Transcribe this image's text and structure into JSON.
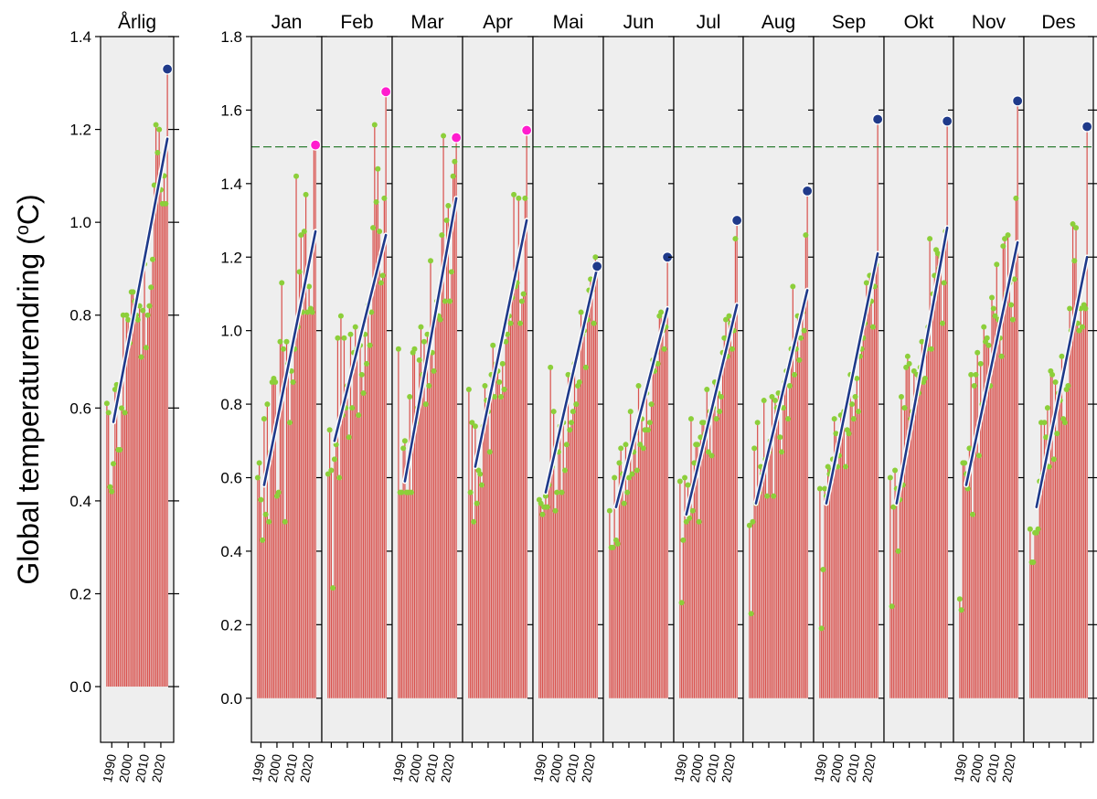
{
  "chart_data": {
    "type": "bar",
    "ylabel": "Global temperaturendring (°C)",
    "ylabel_parts": {
      "main": "Global temperaturendring (",
      "sup": "o",
      "unit": "C)"
    },
    "reference_line": {
      "value": 1.5,
      "color": "#2e7d32"
    },
    "colors": {
      "bar": "#d9534f",
      "point": "#8ccf3a",
      "trend": "#1f3a8a",
      "record_high": "#ff1dce",
      "record_latest": "#1f3a8a",
      "panel_bg": "#eeeeee"
    },
    "panels": [
      {
        "title": "Årlig",
        "ylim": [
          -0.12,
          1.4
        ],
        "yticks": [
          0.0,
          0.2,
          0.4,
          0.6,
          0.8,
          1.0,
          1.2,
          1.4
        ],
        "xticks": [
          "1990",
          "2000",
          "2010",
          "2020"
        ],
        "years": [
          1987,
          2024
        ],
        "values": [
          0.61,
          0.59,
          0.43,
          0.42,
          0.48,
          0.64,
          0.65,
          0.51,
          0.51,
          0.6,
          0.8,
          0.59,
          0.8,
          0.79,
          0.74,
          0.85,
          0.85,
          0.83,
          0.8,
          0.79,
          0.82,
          0.71,
          0.81,
          0.91,
          0.73,
          0.8,
          0.82,
          0.86,
          0.92,
          1.08,
          1.21,
          1.15,
          1.2,
          1.07,
          1.04,
          1.1,
          1.04,
          1.33
        ],
        "trend": [
          0.57,
          1.18
        ],
        "highlight": {
          "value": 1.33,
          "color": "record_latest"
        }
      },
      {
        "title": "Jan",
        "ylim": [
          -0.12,
          1.8
        ],
        "yticks": [
          0.0,
          0.2,
          0.4,
          0.6,
          0.8,
          1.0,
          1.2,
          1.4,
          1.6,
          1.8
        ],
        "xticks": [
          "1990",
          "2000",
          "2010",
          "2020"
        ],
        "years": [
          1988,
          2024
        ],
        "values": [
          0.6,
          0.64,
          0.54,
          0.43,
          0.76,
          0.5,
          0.8,
          0.48,
          0.67,
          0.86,
          0.87,
          0.86,
          0.55,
          0.56,
          0.97,
          1.13,
          0.95,
          0.48,
          0.97,
          0.91,
          0.75,
          0.89,
          0.86,
          0.95,
          1.42,
          1.01,
          1.16,
          1.26,
          1.05,
          1.27,
          1.37,
          1.05,
          1.12,
          1.06,
          1.05,
          1.5,
          1.5
        ],
        "trend": [
          0.58,
          1.27
        ],
        "highlight": {
          "value": 1.505,
          "color": "record_high"
        }
      },
      {
        "title": "Feb",
        "ylim": [
          -0.12,
          1.8
        ],
        "yticks": [
          0.0,
          0.2,
          0.4,
          0.6,
          0.8,
          1.0,
          1.2,
          1.4,
          1.6,
          1.8
        ],
        "xticks": [],
        "years": [
          1988,
          2024
        ],
        "values": [
          0.61,
          0.73,
          0.62,
          0.3,
          0.65,
          0.69,
          0.98,
          0.6,
          1.04,
          0.77,
          0.98,
          0.79,
          0.85,
          0.71,
          0.99,
          0.79,
          0.94,
          1.01,
          0.95,
          0.77,
          0.96,
          0.88,
          0.83,
          0.99,
          0.91,
          1.07,
          0.96,
          1.05,
          1.28,
          1.56,
          1.35,
          1.44,
          1.27,
          1.13,
          1.15,
          1.36,
          1.65
        ],
        "trend": [
          0.7,
          1.26
        ],
        "highlight": {
          "value": 1.65,
          "color": "record_high"
        }
      },
      {
        "title": "Mar",
        "ylim": [
          -0.12,
          1.8
        ],
        "yticks": [
          0.0,
          0.2,
          0.4,
          0.6,
          0.8,
          1.0,
          1.2,
          1.4,
          1.6,
          1.8
        ],
        "xticks": [
          "1990",
          "2000",
          "2010",
          "2020"
        ],
        "years": [
          1988,
          2024
        ],
        "values": [
          0.95,
          0.56,
          0.56,
          0.68,
          0.7,
          0.56,
          0.56,
          0.82,
          0.56,
          0.94,
          0.95,
          0.75,
          0.79,
          0.92,
          1.01,
          0.88,
          0.97,
          0.8,
          0.99,
          0.85,
          1.19,
          0.94,
          0.89,
          1.04,
          1.08,
          1.04,
          1.03,
          1.26,
          1.53,
          1.08,
          1.3,
          1.34,
          1.08,
          1.16,
          1.42,
          1.46,
          1.52
        ],
        "trend": [
          0.59,
          1.36
        ],
        "highlight": {
          "value": 1.525,
          "color": "record_high"
        }
      },
      {
        "title": "Apr",
        "ylim": [
          -0.12,
          1.8
        ],
        "yticks": [
          0.0,
          0.2,
          0.4,
          0.6,
          0.8,
          1.0,
          1.2,
          1.4,
          1.6,
          1.8
        ],
        "xticks": [],
        "years": [
          1988,
          2024
        ],
        "values": [
          0.84,
          0.56,
          0.75,
          0.48,
          0.74,
          0.53,
          0.62,
          0.61,
          0.58,
          0.74,
          0.85,
          0.81,
          0.78,
          0.67,
          0.88,
          0.96,
          0.82,
          0.91,
          0.89,
          0.86,
          0.82,
          0.91,
          0.84,
          0.97,
          0.99,
          1.04,
          1.02,
          1.09,
          1.37,
          1.12,
          1.13,
          1.36,
          1.02,
          1.08,
          1.1,
          1.36,
          1.54
        ],
        "trend": [
          0.63,
          1.3
        ],
        "highlight": {
          "value": 1.545,
          "color": "record_high"
        }
      },
      {
        "title": "Mai",
        "ylim": [
          -0.12,
          1.8
        ],
        "yticks": [
          0.0,
          0.2,
          0.4,
          0.6,
          0.8,
          1.0,
          1.2,
          1.4,
          1.6,
          1.8
        ],
        "xticks": [
          "1990",
          "2000",
          "2010",
          "2020"
        ],
        "years": [
          1988,
          2024
        ],
        "values": [
          0.54,
          0.53,
          0.5,
          0.52,
          0.55,
          0.52,
          0.58,
          0.9,
          0.63,
          0.78,
          0.51,
          0.56,
          0.67,
          0.74,
          0.56,
          0.75,
          0.62,
          0.69,
          0.88,
          0.73,
          0.75,
          0.78,
          0.91,
          0.8,
          0.85,
          0.86,
          1.05,
          0.99,
          1.0,
          0.9,
          1.03,
          1.11,
          1.14,
          1.11,
          1.02,
          1.2,
          1.17
        ],
        "trend": [
          0.56,
          1.17
        ],
        "highlight": {
          "value": 1.175,
          "color": "record_latest"
        }
      },
      {
        "title": "Jun",
        "ylim": [
          -0.12,
          1.8
        ],
        "yticks": [
          0.0,
          0.2,
          0.4,
          0.6,
          0.8,
          1.0,
          1.2,
          1.4,
          1.6,
          1.8
        ],
        "xticks": [],
        "years": [
          1988,
          2024
        ],
        "values": [
          0.51,
          0.41,
          0.41,
          0.6,
          0.43,
          0.42,
          0.64,
          0.68,
          0.61,
          0.53,
          0.69,
          0.56,
          0.6,
          0.78,
          0.61,
          0.67,
          0.72,
          0.62,
          0.85,
          0.69,
          0.76,
          0.68,
          0.73,
          0.83,
          0.73,
          0.75,
          0.8,
          0.92,
          0.89,
          0.94,
          0.91,
          1.04,
          1.05,
          1.0,
          0.95,
          1.01,
          1.2
        ],
        "trend": [
          0.52,
          1.06
        ],
        "highlight": {
          "value": 1.2,
          "color": "record_latest"
        }
      },
      {
        "title": "Jul",
        "ylim": [
          -0.12,
          1.8
        ],
        "yticks": [
          0.0,
          0.2,
          0.4,
          0.6,
          0.8,
          1.0,
          1.2,
          1.4,
          1.6,
          1.8
        ],
        "xticks": [
          "1990",
          "2000",
          "2010",
          "2020"
        ],
        "years": [
          1988,
          2024
        ],
        "values": [
          0.59,
          0.26,
          0.43,
          0.6,
          0.48,
          0.58,
          0.49,
          0.76,
          0.51,
          0.64,
          0.69,
          0.69,
          0.48,
          0.71,
          0.75,
          0.75,
          0.72,
          0.84,
          0.67,
          0.78,
          0.66,
          0.79,
          0.86,
          0.76,
          0.83,
          0.78,
          0.82,
          0.94,
          0.98,
          1.03,
          0.93,
          1.04,
          1.02,
          0.95,
          1.0,
          1.25,
          1.3
        ],
        "trend": [
          0.5,
          1.07
        ],
        "highlight": {
          "value": 1.3,
          "color": "record_latest"
        }
      },
      {
        "title": "Aug",
        "ylim": [
          -0.12,
          1.8
        ],
        "yticks": [
          0.0,
          0.2,
          0.4,
          0.6,
          0.8,
          1.0,
          1.2,
          1.4,
          1.6,
          1.8
        ],
        "xticks": [],
        "years": [
          1988,
          2024
        ],
        "values": [
          0.47,
          0.23,
          0.48,
          0.68,
          0.53,
          0.75,
          0.56,
          0.63,
          0.61,
          0.81,
          0.65,
          0.55,
          0.67,
          0.7,
          0.82,
          0.55,
          0.81,
          0.79,
          0.83,
          0.71,
          0.67,
          0.79,
          0.86,
          0.89,
          0.76,
          0.85,
          0.95,
          1.12,
          0.88,
          0.95,
          1.04,
          0.92,
          0.98,
          1.05,
          1.0,
          1.26,
          1.38
        ],
        "trend": [
          0.53,
          1.11
        ],
        "highlight": {
          "value": 1.38,
          "color": "record_latest"
        }
      },
      {
        "title": "Sep",
        "ylim": [
          -0.12,
          1.8
        ],
        "yticks": [
          0.0,
          0.2,
          0.4,
          0.6,
          0.8,
          1.0,
          1.2,
          1.4,
          1.6,
          1.8
        ],
        "xticks": [
          "1990",
          "2000",
          "2010",
          "2020"
        ],
        "years": [
          1988,
          2024
        ],
        "values": [
          0.57,
          0.19,
          0.35,
          0.57,
          0.55,
          0.63,
          0.61,
          0.62,
          0.65,
          0.76,
          0.72,
          0.63,
          0.66,
          0.77,
          0.77,
          0.78,
          0.63,
          0.73,
          0.72,
          0.88,
          0.8,
          0.76,
          0.82,
          0.87,
          0.78,
          0.93,
          0.95,
          0.98,
          1.02,
          1.13,
          1.07,
          1.15,
          1.08,
          1.01,
          1.12,
          1.18,
          1.575
        ],
        "trend": [
          0.53,
          1.21
        ],
        "highlight": {
          "value": 1.575,
          "color": "record_latest"
        }
      },
      {
        "title": "Okt",
        "ylim": [
          -0.12,
          1.8
        ],
        "yticks": [
          0.0,
          0.2,
          0.4,
          0.6,
          0.8,
          1.0,
          1.2,
          1.4,
          1.6,
          1.8
        ],
        "xticks": [],
        "years": [
          1988,
          2024
        ],
        "values": [
          0.6,
          0.25,
          0.52,
          0.62,
          0.57,
          0.4,
          0.54,
          0.82,
          0.58,
          0.79,
          0.9,
          0.93,
          0.91,
          0.76,
          0.78,
          0.89,
          0.81,
          0.88,
          0.83,
          0.9,
          0.97,
          0.86,
          0.87,
          0.95,
          1.01,
          1.25,
          0.95,
          1.1,
          1.15,
          1.22,
          1.21,
          1.17,
          1.2,
          1.02,
          1.13,
          1.27,
          1.57
        ],
        "trend": [
          0.53,
          1.28
        ],
        "highlight": {
          "value": 1.57,
          "color": "record_latest"
        }
      },
      {
        "title": "Nov",
        "ylim": [
          -0.12,
          1.8
        ],
        "yticks": [
          0.0,
          0.2,
          0.4,
          0.6,
          0.8,
          1.0,
          1.2,
          1.4,
          1.6,
          1.8
        ],
        "xticks": [
          "1990",
          "2000",
          "2010",
          "2020"
        ],
        "years": [
          1988,
          2024
        ],
        "values": [
          0.27,
          0.24,
          0.64,
          0.64,
          0.61,
          0.57,
          0.68,
          0.88,
          0.5,
          0.85,
          0.88,
          0.94,
          0.66,
          0.91,
          0.8,
          1.01,
          0.97,
          0.98,
          0.96,
          0.85,
          1.09,
          1.06,
          1.04,
          1.18,
          1.03,
          0.98,
          0.93,
          1.23,
          1.25,
          1.1,
          1.26,
          1.13,
          1.07,
          1.03,
          1.14,
          1.36,
          1.625
        ],
        "trend": [
          0.58,
          1.24
        ],
        "highlight": {
          "value": 1.625,
          "color": "record_latest"
        }
      },
      {
        "title": "Des",
        "ylim": [
          -0.12,
          1.8
        ],
        "yticks": [
          0.0,
          0.2,
          0.4,
          0.6,
          0.8,
          1.0,
          1.2,
          1.4,
          1.6,
          1.8
        ],
        "xticks": [],
        "years": [
          1988,
          2024
        ],
        "values": [
          0.46,
          0.37,
          0.37,
          0.45,
          0.45,
          0.46,
          0.59,
          0.75,
          0.61,
          0.75,
          0.71,
          0.79,
          0.63,
          0.89,
          0.88,
          0.65,
          0.86,
          0.72,
          0.83,
          0.81,
          0.93,
          0.76,
          0.75,
          0.84,
          0.85,
          1.06,
          1.0,
          1.29,
          1.19,
          1.28,
          1.02,
          1.0,
          1.06,
          1.01,
          1.07,
          1.06,
          1.555
        ],
        "trend": [
          0.52,
          1.2
        ],
        "highlight": {
          "value": 1.555,
          "color": "record_latest"
        }
      }
    ]
  }
}
